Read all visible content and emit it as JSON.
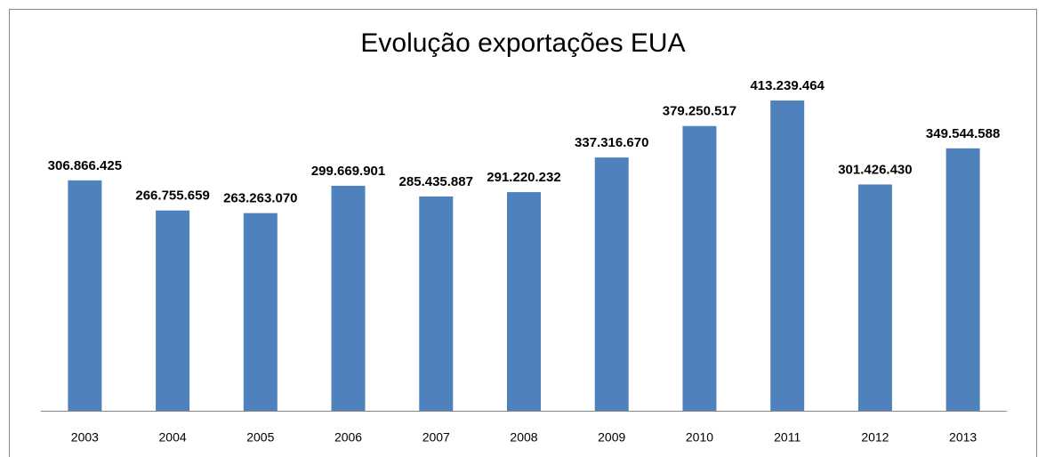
{
  "chart_data": {
    "type": "bar",
    "title": "Evolução exportações EUA",
    "categories": [
      "2003",
      "2004",
      "2005",
      "2006",
      "2007",
      "2008",
      "2009",
      "2010",
      "2011",
      "2012",
      "2013"
    ],
    "values": [
      306866425,
      266755659,
      263263070,
      299669901,
      285435887,
      291220232,
      337316670,
      379250517,
      413239464,
      301426430,
      349544588
    ],
    "value_labels": [
      "306.866.425",
      "266.755.659",
      "263.263.070",
      "299.669.901",
      "285.435.887",
      "291.220.232",
      "337.316.670",
      "379.250.517",
      "413.239.464",
      "301.426.430",
      "349.544.588"
    ],
    "color": "#4f81bd",
    "ylim": [
      0,
      450000000
    ]
  }
}
